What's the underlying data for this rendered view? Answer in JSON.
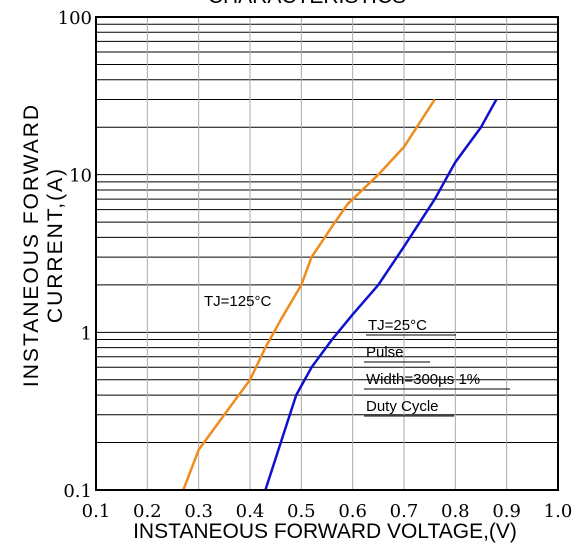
{
  "chart_data": {
    "type": "line",
    "title": "CHARACTERISTICS",
    "xlabel": "INSTANEOUS FORWARD VOLTAGE,(V)",
    "ylabel_lines": [
      "INSTANEOUS FORWARD",
      "CURRENT,(A)"
    ],
    "xlim": [
      0.1,
      1.0
    ],
    "ylim": [
      0.1,
      100
    ],
    "yscale": "log",
    "grid": true,
    "x_ticks": [
      "0.1",
      "0.2",
      "0.3",
      "0.4",
      "0.5",
      "0.6",
      "0.7",
      "0.8",
      "0.9",
      "1.0"
    ],
    "x_tick_values": [
      0.1,
      0.2,
      0.3,
      0.4,
      0.5,
      0.6,
      0.7,
      0.8,
      0.9,
      1.0
    ],
    "y_ticks": [
      "100",
      "10",
      "1",
      "0.1"
    ],
    "y_tick_values": [
      100,
      10,
      1,
      0.1
    ],
    "series": [
      {
        "name": "TJ=125°C",
        "color": "#f08c1e",
        "points": [
          [
            0.27,
            0.1
          ],
          [
            0.3,
            0.18
          ],
          [
            0.35,
            0.3
          ],
          [
            0.4,
            0.5
          ],
          [
            0.43,
            0.8
          ],
          [
            0.46,
            1.2
          ],
          [
            0.5,
            2.0
          ],
          [
            0.52,
            3.0
          ],
          [
            0.56,
            4.7
          ],
          [
            0.59,
            6.5
          ],
          [
            0.65,
            10.0
          ],
          [
            0.7,
            15.0
          ],
          [
            0.76,
            30.0
          ]
        ]
      },
      {
        "name": "TJ=25°C",
        "color": "#1010d0",
        "points": [
          [
            0.43,
            0.1
          ],
          [
            0.46,
            0.2
          ],
          [
            0.49,
            0.4
          ],
          [
            0.52,
            0.6
          ],
          [
            0.56,
            0.9
          ],
          [
            0.6,
            1.3
          ],
          [
            0.65,
            2.0
          ],
          [
            0.7,
            3.5
          ],
          [
            0.76,
            7.0
          ],
          [
            0.8,
            12.0
          ],
          [
            0.85,
            20.0
          ],
          [
            0.88,
            30.0
          ]
        ]
      }
    ],
    "annotations": [
      "TJ=125°C",
      "TJ=25°C",
      "Pulse",
      "Width=300µs 1%",
      "Duty Cycle"
    ]
  }
}
